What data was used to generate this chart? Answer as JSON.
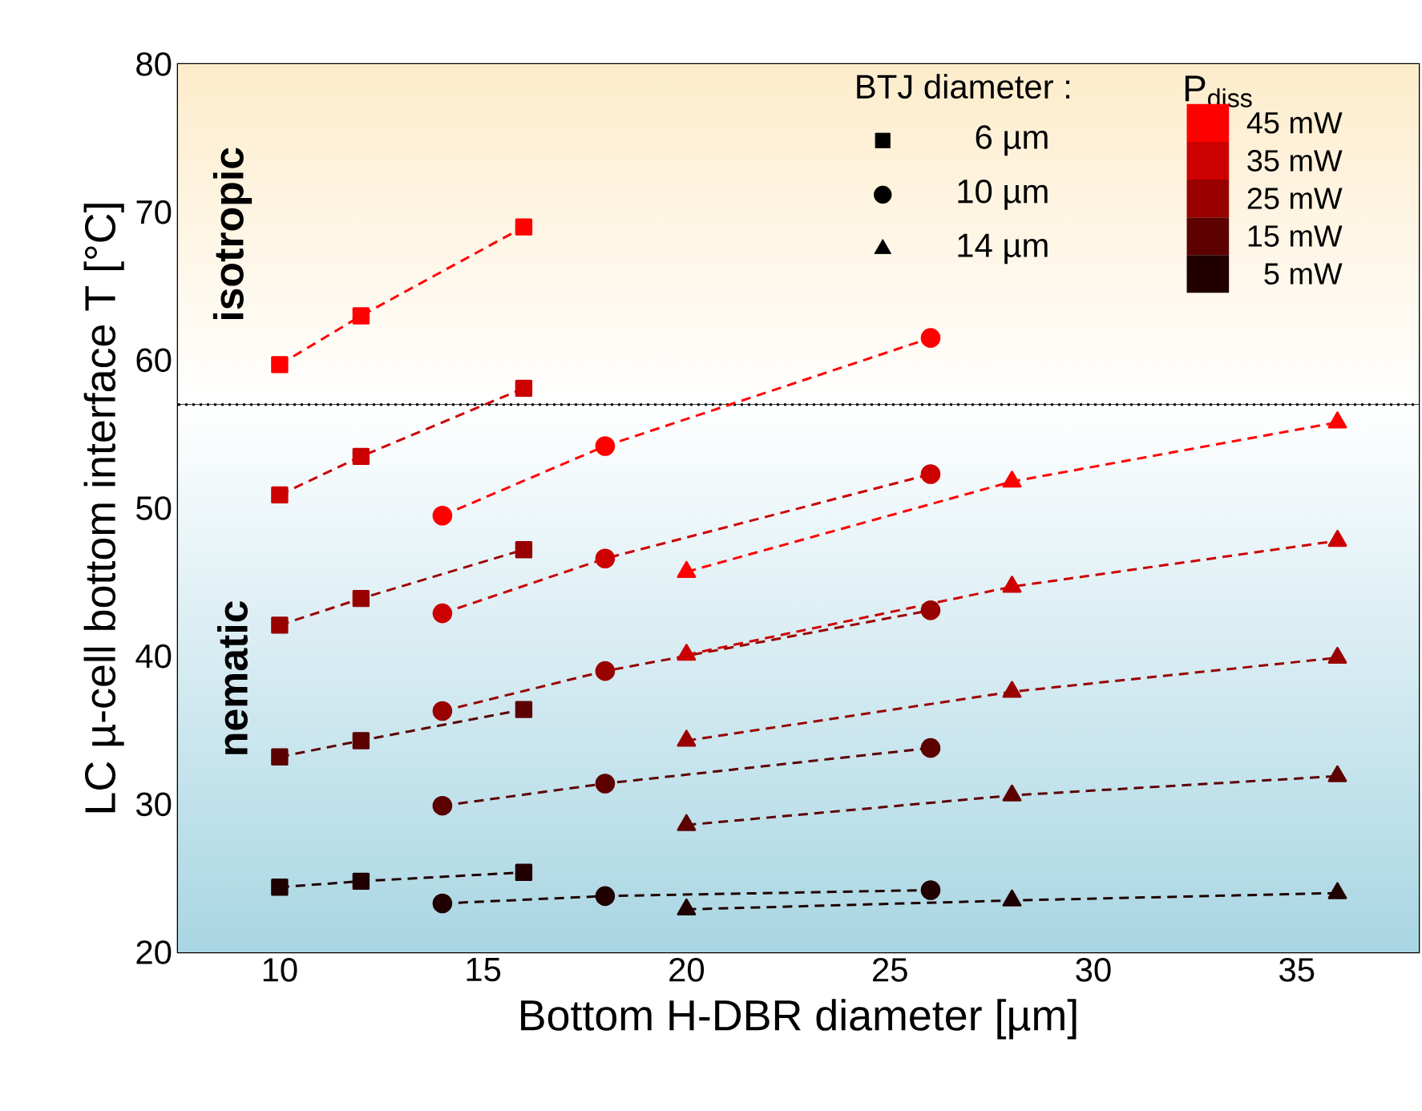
{
  "chart_data": {
    "type": "line",
    "xlabel": "Bottom H-DBR diameter [µm]",
    "ylabel": "LC µ-cell bottom interface T [°C]",
    "xlim": [
      7.5,
      38
    ],
    "xticks": [
      10,
      15,
      20,
      25,
      30,
      35
    ],
    "ylim": [
      20,
      80
    ],
    "yticks": [
      20,
      30,
      40,
      50,
      60,
      70,
      80
    ],
    "line_style": "dashed",
    "annotations": [
      "BTJ diameter :",
      "6 µm",
      "10 µm",
      "14 µm",
      "P$_{diss}$",
      "45 mW",
      "35 mW",
      "25 mW",
      "15 mW",
      "5 mW"
    ],
    "bands": [
      {
        "axis": "y",
        "from": 57,
        "to": 80,
        "label": "isotropic",
        "color": "#fdeccb"
      },
      {
        "axis": "y",
        "from": 20,
        "to": 57,
        "label": "nematic",
        "color": "#a9d6e3"
      }
    ],
    "ref_lines": [
      {
        "axis": "y",
        "value": 57,
        "color": "#000000",
        "line_style": "dotted"
      }
    ],
    "series": [
      {
        "marker": "square",
        "color": "#ff0000",
        "x": [
          10,
          12,
          16
        ],
        "values": [
          59.7,
          63.0,
          69.0
        ]
      },
      {
        "marker": "square",
        "color": "#cc0000",
        "x": [
          10,
          12,
          16
        ],
        "values": [
          50.9,
          53.5,
          58.1
        ]
      },
      {
        "marker": "square",
        "color": "#990000",
        "x": [
          10,
          12,
          16
        ],
        "values": [
          42.1,
          43.9,
          47.2
        ]
      },
      {
        "marker": "square",
        "color": "#5c0000",
        "x": [
          10,
          12,
          16
        ],
        "values": [
          33.2,
          34.3,
          36.4
        ]
      },
      {
        "marker": "square",
        "color": "#200000",
        "x": [
          10,
          12,
          16
        ],
        "values": [
          24.4,
          24.8,
          25.4
        ]
      },
      {
        "marker": "circle",
        "color": "#ff0000",
        "x": [
          14,
          18,
          26
        ],
        "values": [
          49.5,
          54.2,
          61.5
        ]
      },
      {
        "marker": "circle",
        "color": "#cc0000",
        "x": [
          14,
          18,
          26
        ],
        "values": [
          42.9,
          46.6,
          52.3
        ]
      },
      {
        "marker": "circle",
        "color": "#990000",
        "x": [
          14,
          18,
          26
        ],
        "values": [
          36.3,
          39.0,
          43.1
        ]
      },
      {
        "marker": "circle",
        "color": "#5c0000",
        "x": [
          14,
          18,
          26
        ],
        "values": [
          29.9,
          31.4,
          33.8
        ]
      },
      {
        "marker": "circle",
        "color": "#200000",
        "x": [
          14,
          18,
          26
        ],
        "values": [
          23.3,
          23.8,
          24.2
        ]
      },
      {
        "marker": "triangle",
        "color": "#ff0000",
        "x": [
          20,
          28,
          36
        ],
        "values": [
          45.7,
          51.8,
          55.8
        ]
      },
      {
        "marker": "triangle",
        "color": "#cc0000",
        "x": [
          20,
          28,
          36
        ],
        "values": [
          40.1,
          44.7,
          47.8
        ]
      },
      {
        "marker": "triangle",
        "color": "#990000",
        "x": [
          20,
          28,
          36
        ],
        "values": [
          34.3,
          37.6,
          39.9
        ]
      },
      {
        "marker": "triangle",
        "color": "#5c0000",
        "x": [
          20,
          28,
          36
        ],
        "values": [
          28.6,
          30.6,
          31.9
        ]
      },
      {
        "marker": "triangle",
        "color": "#200000",
        "x": [
          20,
          28,
          36
        ],
        "values": [
          22.9,
          23.5,
          24.0
        ]
      }
    ]
  }
}
